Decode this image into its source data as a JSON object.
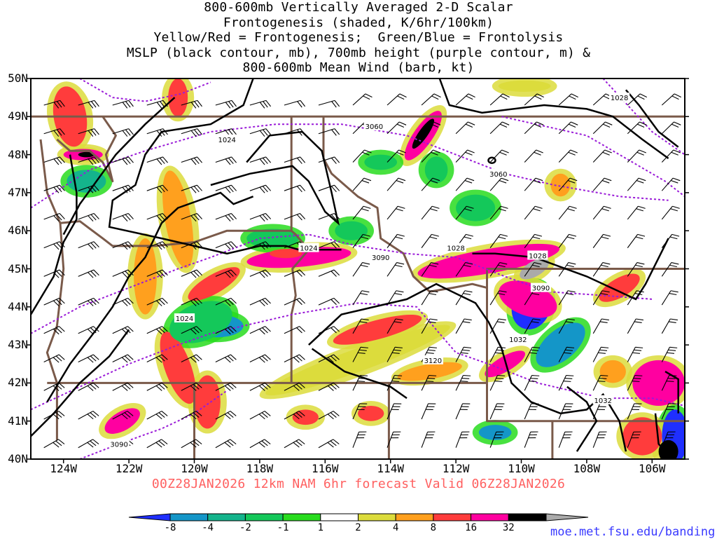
{
  "title_lines": [
    "800-600mb Vertically Averaged 2-D Scalar",
    "Frontogenesis (shaded, K/6hr/100km)",
    "Yellow/Red = Frontogenesis;  Green/Blue = Frontolysis",
    "MSLP (black contour, mb), 700mb height (purple contour, m) &",
    "800-600mb Mean Wind (barb, kt)"
  ],
  "lat_labels": [
    "50N",
    "49N",
    "48N",
    "47N",
    "46N",
    "45N",
    "44N",
    "43N",
    "42N",
    "41N",
    "40N"
  ],
  "lon_labels": [
    "124W",
    "122W",
    "120W",
    "118W",
    "116W",
    "114W",
    "112W",
    "110W",
    "108W",
    "106W"
  ],
  "forecast_line": "00Z28JAN2026 12km NAM 6hr forecast Valid 06Z28JAN2026",
  "colorbar": {
    "labels": [
      "-8",
      "-4",
      "-2",
      "-1",
      "1",
      "2",
      "4",
      "8",
      "16",
      "32"
    ],
    "colors": [
      "#1f2fff",
      "#1496c8",
      "#14b48c",
      "#14c85a",
      "#28dc1e",
      "#ffffff",
      "#dcdc3c",
      "#ffa01e",
      "#ff3c3c",
      "#ff00a0",
      "#000000",
      "#aaaaaa"
    ]
  },
  "credit": "moe.met.fsu.edu/banding",
  "map": {
    "extent": {
      "lon_min": -125,
      "lon_max": -105,
      "lat_min": 40,
      "lat_max": 50
    },
    "pressure_labels": [
      {
        "text": "1028",
        "lon": -107.0,
        "lat": 49.5
      },
      {
        "text": "1024",
        "lon": -119.0,
        "lat": 48.4
      },
      {
        "text": "1024",
        "lon": -116.5,
        "lat": 45.55
      },
      {
        "text": "1028",
        "lon": -112.0,
        "lat": 45.55
      },
      {
        "text": "1028",
        "lon": -109.5,
        "lat": 45.35
      },
      {
        "text": "1024",
        "lon": -120.3,
        "lat": 43.7
      },
      {
        "text": "1032",
        "lon": -110.1,
        "lat": 43.15
      },
      {
        "text": "1032",
        "lon": -107.5,
        "lat": 41.55
      }
    ],
    "height_labels": [
      {
        "text": "3060",
        "lon": -114.5,
        "lat": 48.75
      },
      {
        "text": "3060",
        "lon": -110.7,
        "lat": 47.5
      },
      {
        "text": "3090",
        "lon": -114.3,
        "lat": 45.3
      },
      {
        "text": "3090",
        "lon": -109.4,
        "lat": 44.5
      },
      {
        "text": "3120",
        "lon": -112.7,
        "lat": 42.6
      },
      {
        "text": "3090",
        "lon": -122.3,
        "lat": 40.4
      }
    ]
  }
}
